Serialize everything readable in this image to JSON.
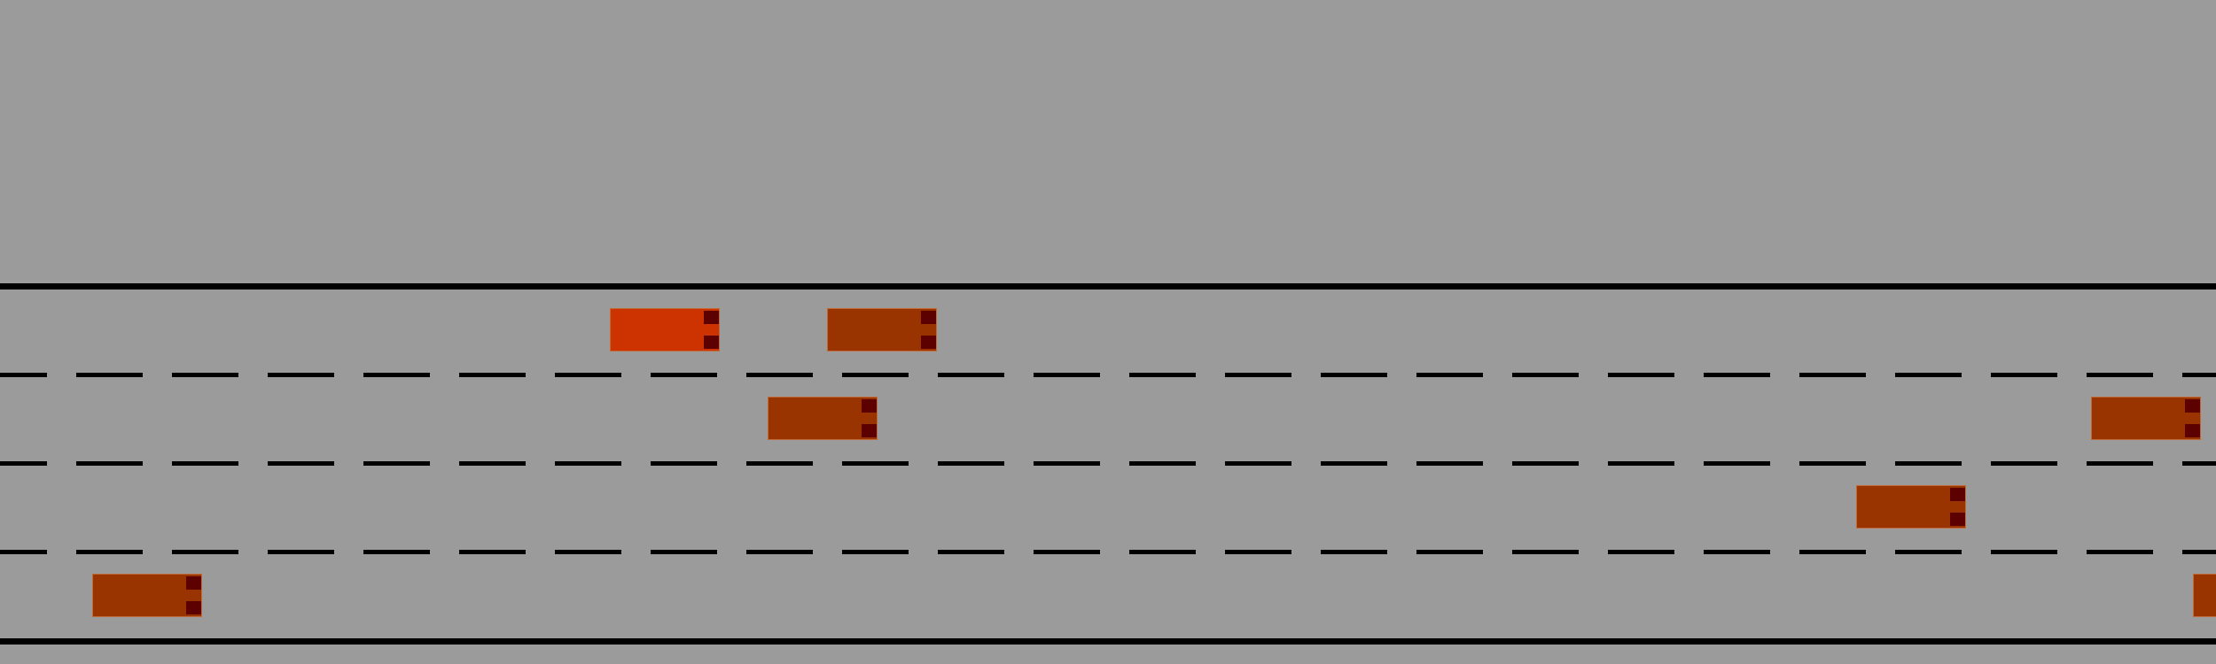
{
  "scene": {
    "type": "highway-driving",
    "lanes": 4,
    "colors": {
      "road": "#9b9b9b",
      "lines": "#000000",
      "ego_car": "#cc3300",
      "other_car": "#993300",
      "tail_light": "#5c0000"
    },
    "vehicles": [
      {
        "name": "ego-car",
        "role": "ego",
        "lane": 1
      },
      {
        "name": "vehicle-1",
        "role": "other",
        "lane": 1
      },
      {
        "name": "vehicle-2",
        "role": "other",
        "lane": 2
      },
      {
        "name": "vehicle-3",
        "role": "other",
        "lane": 2
      },
      {
        "name": "vehicle-4",
        "role": "other",
        "lane": 3
      },
      {
        "name": "vehicle-5",
        "role": "other",
        "lane": 4
      },
      {
        "name": "vehicle-6",
        "role": "other",
        "lane": 4
      }
    ]
  }
}
